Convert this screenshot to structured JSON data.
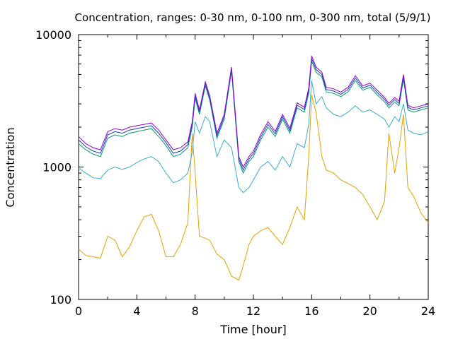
{
  "chart_data": {
    "type": "line",
    "title": "Concentration, ranges: 0-30 nm, 0-100 nm, 0-300 nm, total (5/9/1)",
    "xlabel": "Time [hour]",
    "ylabel": "Concentration",
    "xlim": [
      0,
      24
    ],
    "ylim": [
      100,
      10000
    ],
    "yscale": "log",
    "grid": false,
    "legend": "none",
    "x_ticks": [
      0,
      4,
      8,
      12,
      16,
      20,
      24
    ],
    "x_tick_labels": [
      "0",
      "4",
      "8",
      "12",
      "16",
      "20",
      "24"
    ],
    "y_ticks": [
      100,
      1000,
      10000
    ],
    "y_tick_labels": [
      "100",
      "1000",
      "10000"
    ],
    "series": [
      {
        "color": "#e8a000",
        "x": [
          0,
          0.5,
          1,
          1.5,
          2,
          2.5,
          3,
          3.5,
          4,
          4.5,
          5,
          5.5,
          6,
          6.5,
          7,
          7.5,
          7.8,
          8,
          8.3,
          8.7,
          9,
          9.5,
          10,
          10.5,
          11,
          11.3,
          11.7,
          12,
          12.5,
          13,
          13.5,
          14,
          14.5,
          15,
          15.5,
          15.8,
          16,
          16.3,
          16.7,
          17,
          17.5,
          18,
          18.5,
          19,
          19.5,
          20,
          20.5,
          21,
          21.3,
          21.7,
          22,
          22.3,
          22.6,
          23,
          23.5,
          24
        ],
        "values": [
          240,
          215,
          210,
          205,
          300,
          280,
          210,
          250,
          330,
          420,
          440,
          330,
          210,
          210,
          260,
          380,
          1800,
          900,
          300,
          290,
          280,
          220,
          200,
          150,
          140,
          180,
          260,
          300,
          330,
          350,
          300,
          260,
          350,
          500,
          400,
          1200,
          3500,
          2600,
          1200,
          950,
          900,
          800,
          750,
          700,
          620,
          500,
          400,
          550,
          1800,
          900,
          1400,
          2500,
          700,
          600,
          450,
          380
        ]
      },
      {
        "color": "#3daad6",
        "x": [
          0,
          0.5,
          1,
          1.5,
          2,
          2.5,
          3,
          3.5,
          4,
          4.5,
          5,
          5.5,
          6,
          6.5,
          7,
          7.5,
          7.8,
          8,
          8.3,
          8.7,
          9,
          9.5,
          10,
          10.5,
          11,
          11.3,
          11.7,
          12,
          12.5,
          13,
          13.5,
          14,
          14.5,
          15,
          15.5,
          15.8,
          16,
          16.3,
          16.7,
          17,
          17.5,
          18,
          18.5,
          19,
          19.5,
          20,
          20.5,
          21,
          21.3,
          21.7,
          22,
          22.3,
          22.6,
          23,
          23.5,
          24
        ],
        "values": [
          980,
          900,
          830,
          820,
          950,
          1000,
          960,
          1000,
          1080,
          1150,
          1200,
          1100,
          900,
          760,
          800,
          900,
          1300,
          2200,
          1800,
          2400,
          2200,
          1200,
          1600,
          1400,
          700,
          640,
          700,
          800,
          1000,
          1100,
          950,
          1200,
          1000,
          1500,
          1400,
          2100,
          4500,
          3000,
          3400,
          2800,
          2500,
          2400,
          2600,
          2900,
          2600,
          2700,
          2500,
          2300,
          2000,
          2400,
          2200,
          3000,
          1900,
          1800,
          1750,
          1850
        ]
      },
      {
        "color": "#009e73",
        "x": [
          0,
          0.5,
          1,
          1.5,
          2,
          2.5,
          3,
          3.5,
          4,
          4.5,
          5,
          5.5,
          6,
          6.5,
          7,
          7.5,
          7.8,
          8,
          8.3,
          8.7,
          9,
          9.5,
          10,
          10.5,
          11,
          11.3,
          11.7,
          12,
          12.5,
          13,
          13.5,
          14,
          14.5,
          15,
          15.5,
          15.8,
          16,
          16.3,
          16.7,
          17,
          17.5,
          18,
          18.5,
          19,
          19.5,
          20,
          20.5,
          21,
          21.3,
          21.7,
          22,
          22.3,
          22.6,
          23,
          23.5,
          24
        ],
        "values": [
          1500,
          1350,
          1250,
          1200,
          1650,
          1750,
          1700,
          1800,
          1850,
          1900,
          1950,
          1700,
          1450,
          1200,
          1250,
          1400,
          2000,
          3300,
          2500,
          4100,
          3200,
          1650,
          2300,
          5300,
          1100,
          900,
          1100,
          1200,
          1600,
          2000,
          1700,
          2300,
          1800,
          2800,
          2600,
          3600,
          6300,
          5200,
          4800,
          3700,
          3600,
          3400,
          3700,
          4500,
          3800,
          4000,
          3500,
          3100,
          2800,
          3100,
          2900,
          4600,
          2700,
          2600,
          2700,
          2800
        ]
      },
      {
        "color": "#1a3fb4",
        "x": [
          0,
          0.5,
          1,
          1.5,
          2,
          2.5,
          3,
          3.5,
          4,
          4.5,
          5,
          5.5,
          6,
          6.5,
          7,
          7.5,
          7.8,
          8,
          8.3,
          8.7,
          9,
          9.5,
          10,
          10.5,
          11,
          11.3,
          11.7,
          12,
          12.5,
          13,
          13.5,
          14,
          14.5,
          15,
          15.5,
          15.8,
          16,
          16.3,
          16.7,
          17,
          17.5,
          18,
          18.5,
          19,
          19.5,
          20,
          20.5,
          21,
          21.3,
          21.7,
          22,
          22.3,
          22.6,
          23,
          23.5,
          24
        ],
        "values": [
          1600,
          1420,
          1320,
          1270,
          1750,
          1850,
          1800,
          1900,
          1950,
          2000,
          2050,
          1800,
          1530,
          1270,
          1320,
          1480,
          2100,
          3450,
          2600,
          4250,
          3320,
          1720,
          2400,
          5500,
          1150,
          950,
          1150,
          1260,
          1680,
          2100,
          1780,
          2400,
          1880,
          2930,
          2720,
          3780,
          6600,
          5450,
          5000,
          3850,
          3750,
          3540,
          3850,
          4700,
          3950,
          4150,
          3650,
          3230,
          2920,
          3230,
          3020,
          4800,
          2820,
          2700,
          2800,
          2900
        ]
      },
      {
        "color": "#9400d3",
        "x": [
          0,
          0.5,
          1,
          1.5,
          2,
          2.5,
          3,
          3.5,
          4,
          4.5,
          5,
          5.5,
          6,
          6.5,
          7,
          7.5,
          7.8,
          8,
          8.3,
          8.7,
          9,
          9.5,
          10,
          10.5,
          11,
          11.3,
          11.7,
          12,
          12.5,
          13,
          13.5,
          14,
          14.5,
          15,
          15.5,
          15.8,
          16,
          16.3,
          16.7,
          17,
          17.5,
          18,
          18.5,
          19,
          19.5,
          20,
          20.5,
          21,
          21.3,
          21.7,
          22,
          22.3,
          22.6,
          23,
          23.5,
          24
        ],
        "values": [
          1700,
          1500,
          1400,
          1350,
          1850,
          1950,
          1900,
          2000,
          2050,
          2100,
          2150,
          1900,
          1600,
          1350,
          1400,
          1550,
          2200,
          3600,
          2700,
          4400,
          3450,
          1800,
          2500,
          5700,
          1200,
          1000,
          1200,
          1320,
          1760,
          2200,
          1860,
          2500,
          1960,
          3050,
          2830,
          3950,
          6900,
          5700,
          5200,
          4000,
          3900,
          3680,
          4000,
          4900,
          4100,
          4300,
          3800,
          3350,
          3030,
          3350,
          3140,
          5000,
          2930,
          2800,
          2900,
          3000
        ]
      }
    ]
  }
}
